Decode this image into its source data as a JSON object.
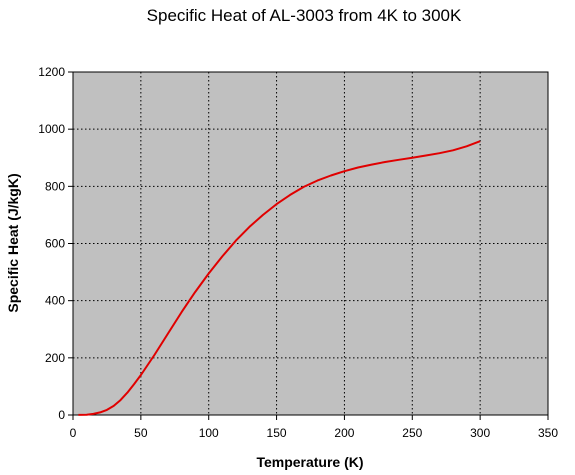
{
  "chart_data": {
    "type": "line",
    "title": "Specific Heat of AL-3003 from 4K to 300K",
    "xlabel": "Temperature (K)",
    "ylabel": "Specific Heat (J/kgK)",
    "xlim": [
      0,
      350
    ],
    "ylim": [
      0,
      1200
    ],
    "xticks": [
      0,
      50,
      100,
      150,
      200,
      250,
      300,
      350
    ],
    "yticks": [
      0,
      200,
      400,
      600,
      800,
      1000,
      1200
    ],
    "grid": true,
    "legend": "none",
    "colors": {
      "plot_background": "#c0c0c0",
      "line": "#e00000",
      "grid": "#000000"
    },
    "series": [
      {
        "x": [
          4,
          10,
          15,
          20,
          25,
          30,
          35,
          40,
          45,
          50,
          60,
          70,
          80,
          90,
          100,
          110,
          120,
          130,
          140,
          150,
          160,
          170,
          180,
          190,
          200,
          210,
          220,
          230,
          240,
          250,
          260,
          270,
          280,
          290,
          300
        ],
        "y": [
          0.3,
          1.2,
          4,
          9,
          18,
          32,
          52,
          78,
          108,
          140,
          210,
          285,
          360,
          430,
          495,
          555,
          610,
          658,
          700,
          738,
          770,
          798,
          820,
          838,
          853,
          866,
          876,
          885,
          893,
          900,
          908,
          916,
          926,
          940,
          958
        ]
      }
    ]
  }
}
